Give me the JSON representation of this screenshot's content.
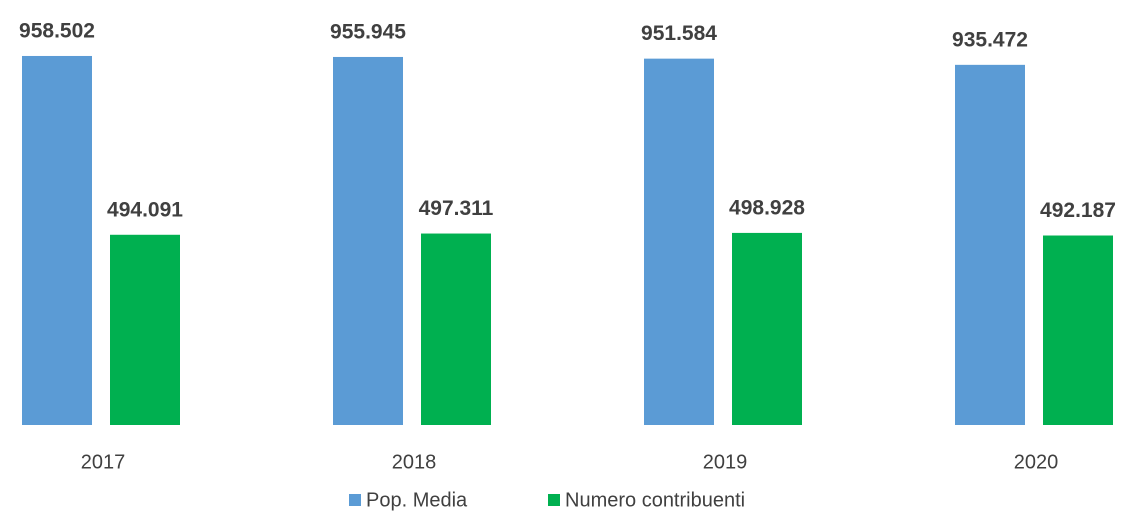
{
  "chart_data": {
    "type": "bar",
    "categories": [
      "2017",
      "2018",
      "2019",
      "2020"
    ],
    "series": [
      {
        "name": "Pop. Media",
        "color": "#5b9bd5",
        "values": [
          958502,
          955945,
          951584,
          935472
        ],
        "value_labels": [
          "958.502",
          "955.945",
          "951.584",
          "935.472"
        ]
      },
      {
        "name": "Numero contribuenti",
        "color": "#00b050",
        "values": [
          494091,
          497311,
          498928,
          492187
        ],
        "value_labels": [
          "494.091",
          "497.311",
          "498.928",
          "492.187"
        ]
      }
    ],
    "ylim": [
      0,
      1000000
    ],
    "legend": "bottom"
  }
}
